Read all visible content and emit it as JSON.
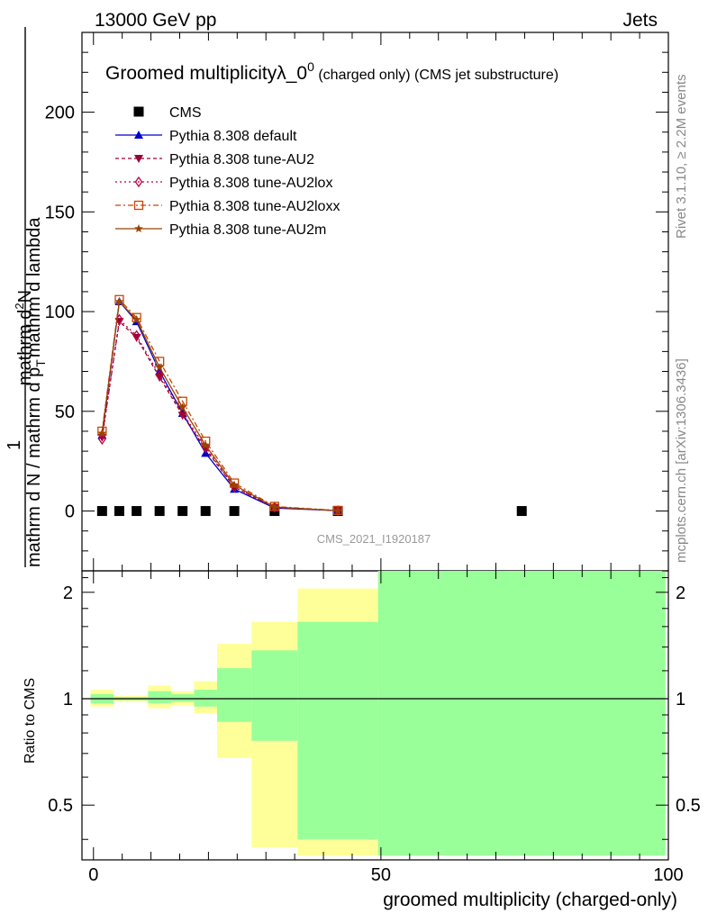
{
  "header": {
    "energy": "13000 GeV pp",
    "category": "Jets"
  },
  "side": {
    "rivet": "Rivet 3.1.10, ≥ 2.2M events",
    "mcplots": "mcplots.cern.ch [arXiv:1306.3436]"
  },
  "chart_data": [
    {
      "type": "scatter",
      "title_main": "Groomed multiplicityλ_0",
      "title_sup": "0",
      "title_sub": " (charged only) (CMS jet substructure)",
      "ylabel": {
        "left": "mathrm d N / mathrm d p",
        "left_sub": "T",
        "left_tail": "mathrm d lambda",
        "top": "mathrm d",
        "top_sup": "2",
        "top_tail": "N",
        "prefix": "1"
      },
      "ylabel_numerator": "mathrm d^2N",
      "ylabel_denominator": "mathrm d p_T mathrm d lambda",
      "ylabel_full": "1 / (mathrm d N / mathrm d p_T mathrm d lambda) * mathrm d^2N / (mathrm d p_T mathrm d lambda)",
      "ylim": [
        -30,
        240
      ],
      "yticks": [
        0,
        50,
        100,
        150,
        200
      ],
      "xlim": [
        -2,
        100
      ],
      "watermark": "CMS_2021_I1920187",
      "legend_position": "top-left",
      "series": [
        {
          "name": "CMS",
          "color": "#000000",
          "marker": "square",
          "x": [
            1.5,
            4.5,
            7.5,
            11.5,
            15.5,
            19.5,
            24.5,
            31.5,
            42.5,
            74.5
          ],
          "y": [
            0,
            0,
            0,
            0,
            0,
            0,
            0,
            0,
            0,
            0
          ]
        },
        {
          "name": "Pythia 8.308 default",
          "color": "#0000cc",
          "marker": "triangle-up",
          "x": [
            1.5,
            4.5,
            7.5,
            11.5,
            15.5,
            19.5,
            24.5,
            31.5,
            42.5
          ],
          "y": [
            38,
            105,
            95,
            70,
            49,
            29,
            11,
            1.5,
            0.2
          ]
        },
        {
          "name": "Pythia 8.308 tune-AU2",
          "color": "#990033",
          "marker": "triangle-down",
          "x": [
            1.5,
            4.5,
            7.5,
            11.5,
            15.5,
            19.5,
            24.5,
            31.5,
            42.5
          ],
          "y": [
            37,
            95,
            87,
            67,
            48,
            31,
            12,
            1.8,
            0.2
          ]
        },
        {
          "name": "Pythia 8.308 tune-AU2lox",
          "color": "#bb0044",
          "marker": "diamond",
          "x": [
            1.5,
            4.5,
            7.5,
            11.5,
            15.5,
            19.5,
            24.5,
            31.5,
            42.5
          ],
          "y": [
            36,
            96,
            88,
            68,
            49,
            32,
            12,
            1.9,
            0.2
          ]
        },
        {
          "name": "Pythia 8.308 tune-AU2loxx",
          "color": "#cc4400",
          "marker": "square-open",
          "x": [
            1.5,
            4.5,
            7.5,
            11.5,
            15.5,
            19.5,
            24.5,
            31.5,
            42.5
          ],
          "y": [
            40,
            106,
            97,
            75,
            55,
            35,
            14,
            2.3,
            0.3
          ]
        },
        {
          "name": "Pythia 8.308 tune-AU2m",
          "color": "#994400",
          "marker": "star",
          "x": [
            1.5,
            4.5,
            7.5,
            11.5,
            15.5,
            19.5,
            24.5,
            31.5,
            42.5
          ],
          "y": [
            39,
            105,
            96,
            72,
            52,
            33,
            13,
            2.0,
            0.2
          ]
        }
      ]
    },
    {
      "type": "area",
      "ylabel": "Ratio to CMS",
      "xlabel": "groomed multiplicity (charged-only)",
      "xlim": [
        -2,
        100
      ],
      "xticks": [
        0,
        50,
        100
      ],
      "ylim": [
        0.35,
        2.3
      ],
      "yticks": [
        0.5,
        1,
        2
      ],
      "reference_y": 1,
      "bands": [
        {
          "x0": -0.5,
          "x1": 3.5,
          "inner": [
            0.97,
            1.03
          ],
          "outer": [
            0.95,
            1.06
          ]
        },
        {
          "x0": 3.5,
          "x1": 5.5,
          "inner": [
            0.99,
            1.01
          ],
          "outer": [
            0.98,
            1.02
          ]
        },
        {
          "x0": 5.5,
          "x1": 9.5,
          "inner": [
            0.99,
            1.01
          ],
          "outer": [
            0.98,
            1.02
          ]
        },
        {
          "x0": 9.5,
          "x1": 13.5,
          "inner": [
            0.97,
            1.05
          ],
          "outer": [
            0.94,
            1.09
          ]
        },
        {
          "x0": 13.5,
          "x1": 17.5,
          "inner": [
            0.98,
            1.03
          ],
          "outer": [
            0.96,
            1.05
          ]
        },
        {
          "x0": 17.5,
          "x1": 21.5,
          "inner": [
            0.95,
            1.06
          ],
          "outer": [
            0.91,
            1.12
          ]
        },
        {
          "x0": 21.5,
          "x1": 27.5,
          "inner": [
            0.86,
            1.22
          ],
          "outer": [
            0.68,
            1.43
          ]
        },
        {
          "x0": 27.5,
          "x1": 35.5,
          "inner": [
            0.76,
            1.37
          ],
          "outer": [
            0.38,
            1.65
          ]
        },
        {
          "x0": 35.5,
          "x1": 49.5,
          "inner": [
            0.4,
            1.65
          ],
          "outer": [
            0.36,
            2.05
          ]
        },
        {
          "x0": 49.5,
          "x1": 99.5,
          "inner": [
            0.36,
            2.3
          ],
          "outer": [
            0.36,
            2.3
          ]
        }
      ],
      "colors": {
        "inner": "#99ff99",
        "outer": "#ffff99"
      }
    }
  ]
}
